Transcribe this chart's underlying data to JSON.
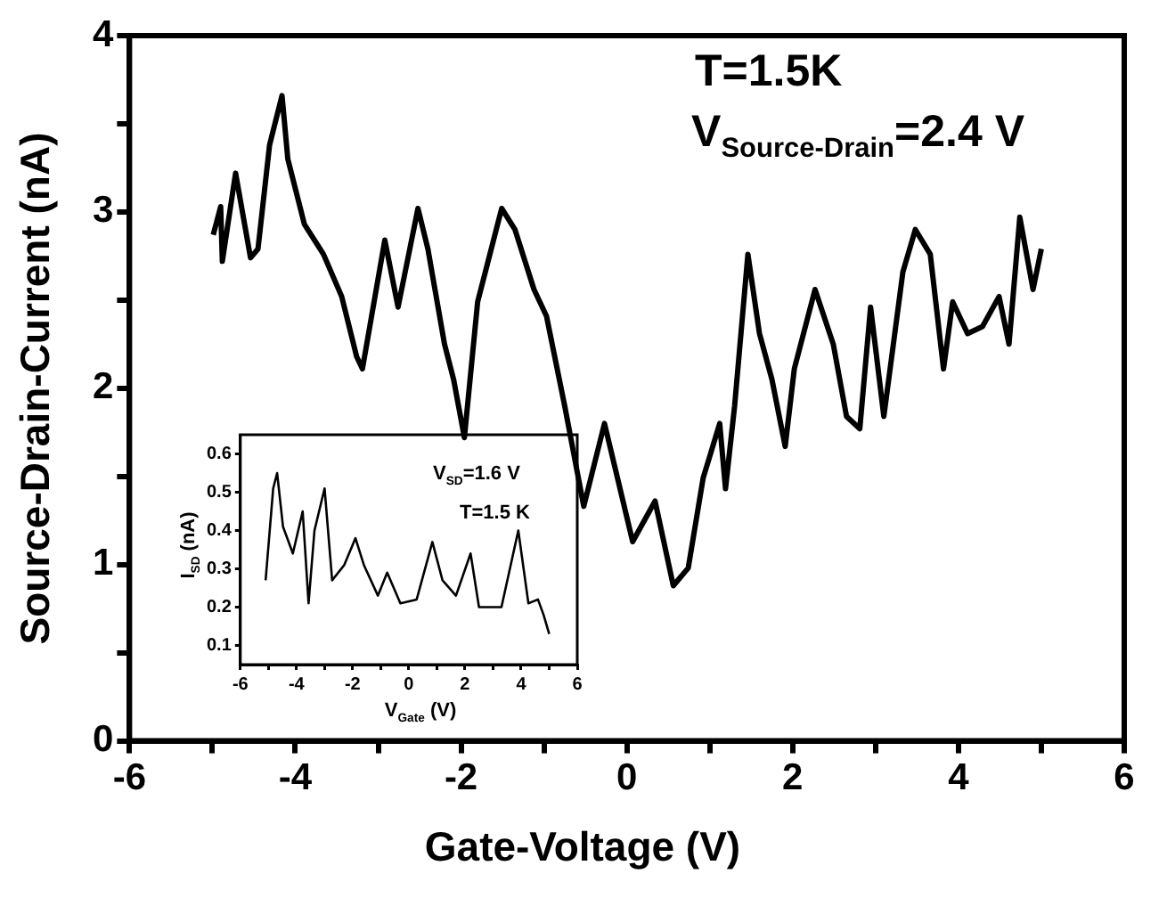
{
  "chart_data": [
    {
      "type": "line",
      "xlabel": "Gate-Voltage (V)",
      "ylabel": "Source-Drain-Current (nA)",
      "annotations": [
        "T=1.5K",
        "V$_{Source-Drain}$=2.4 V"
      ],
      "color": "#000000",
      "marker": "none",
      "line_style": "solid",
      "x": [
        -4.99,
        -4.9,
        -4.88,
        -4.72,
        -4.54,
        -4.45,
        -4.31,
        -4.16,
        -4.09,
        -3.89,
        -3.66,
        -3.44,
        -3.26,
        -3.19,
        -2.92,
        -2.76,
        -2.52,
        -2.4,
        -2.2,
        -2.09,
        -1.96,
        -1.8,
        -1.51,
        -1.35,
        -1.12,
        -0.97,
        -0.75,
        -0.52,
        -0.27,
        0.07,
        0.34,
        0.56,
        0.74,
        0.92,
        1.12,
        1.19,
        1.3,
        1.46,
        1.6,
        1.75,
        1.91,
        2.02,
        2.27,
        2.49,
        2.65,
        2.81,
        2.94,
        3.1,
        3.33,
        3.48,
        3.66,
        3.82,
        3.93,
        4.11,
        4.29,
        4.49,
        4.61,
        4.74,
        4.9,
        5.0
      ],
      "values": [
        2.87,
        3.03,
        2.72,
        3.22,
        2.74,
        2.79,
        3.38,
        3.66,
        3.3,
        2.93,
        2.76,
        2.52,
        2.18,
        2.11,
        2.84,
        2.46,
        3.02,
        2.79,
        2.25,
        2.05,
        1.72,
        2.49,
        3.02,
        2.9,
        2.56,
        2.41,
        1.9,
        1.33,
        1.8,
        1.13,
        1.36,
        0.88,
        0.98,
        1.49,
        1.8,
        1.43,
        1.9,
        2.76,
        2.31,
        2.05,
        1.67,
        2.11,
        2.56,
        2.25,
        1.84,
        1.77,
        2.46,
        1.84,
        2.66,
        2.9,
        2.76,
        2.11,
        2.49,
        2.31,
        2.35,
        2.52,
        2.25,
        2.97,
        2.56,
        2.79
      ],
      "xlim": [
        -6,
        6
      ],
      "ylim": [
        0,
        4
      ],
      "xticks": [
        -6,
        {
          "value": -5,
          "label": null
        },
        -4,
        {
          "value": -3,
          "label": null
        },
        -2,
        {
          "value": -1,
          "label": null
        },
        0,
        {
          "value": 1,
          "label": null
        },
        2,
        {
          "value": 3,
          "label": null
        },
        4,
        {
          "value": 5,
          "label": null
        },
        6
      ],
      "yticks": [
        0,
        {
          "value": 0.5,
          "label": null
        },
        1,
        {
          "value": 1.5,
          "label": null
        },
        2,
        {
          "value": 2.5,
          "label": null
        },
        3,
        {
          "value": 3.5,
          "label": null
        },
        4
      ]
    },
    {
      "type": "line",
      "xlabel": "V$_{Gate}$ (V)",
      "ylabel": "I$_{SD}$ (nA)",
      "annotations": [
        "V$_{SD}$=1.6 V",
        "T=1.5 K"
      ],
      "color": "#000000",
      "marker": "none",
      "line_style": "solid",
      "x": [
        -5.1,
        -4.83,
        -4.69,
        -4.48,
        -4.13,
        -3.78,
        -3.57,
        -3.36,
        -3.0,
        -2.73,
        -2.3,
        -1.9,
        -1.6,
        -1.1,
        -0.77,
        -0.3,
        0.28,
        0.84,
        1.2,
        1.68,
        2.2,
        2.5,
        3.3,
        3.9,
        4.26,
        4.6,
        4.8,
        5.0
      ],
      "values": [
        0.27,
        0.51,
        0.55,
        0.41,
        0.34,
        0.45,
        0.21,
        0.4,
        0.51,
        0.27,
        0.31,
        0.38,
        0.31,
        0.23,
        0.29,
        0.21,
        0.22,
        0.37,
        0.27,
        0.23,
        0.34,
        0.2,
        0.2,
        0.4,
        0.21,
        0.22,
        0.18,
        0.13
      ],
      "xlim": [
        -6,
        6
      ],
      "ylim": [
        0.05,
        0.65
      ],
      "xticks": [
        -6,
        {
          "value": -5,
          "label": null
        },
        -4,
        {
          "value": -3,
          "label": null
        },
        -2,
        {
          "value": -1,
          "label": null
        },
        0,
        {
          "value": 1,
          "label": null
        },
        2,
        {
          "value": 3,
          "label": null
        },
        4,
        {
          "value": 5,
          "label": null
        },
        6
      ],
      "yticks": [
        0.1,
        0.2,
        0.3,
        0.4,
        0.5,
        0.6
      ]
    }
  ]
}
